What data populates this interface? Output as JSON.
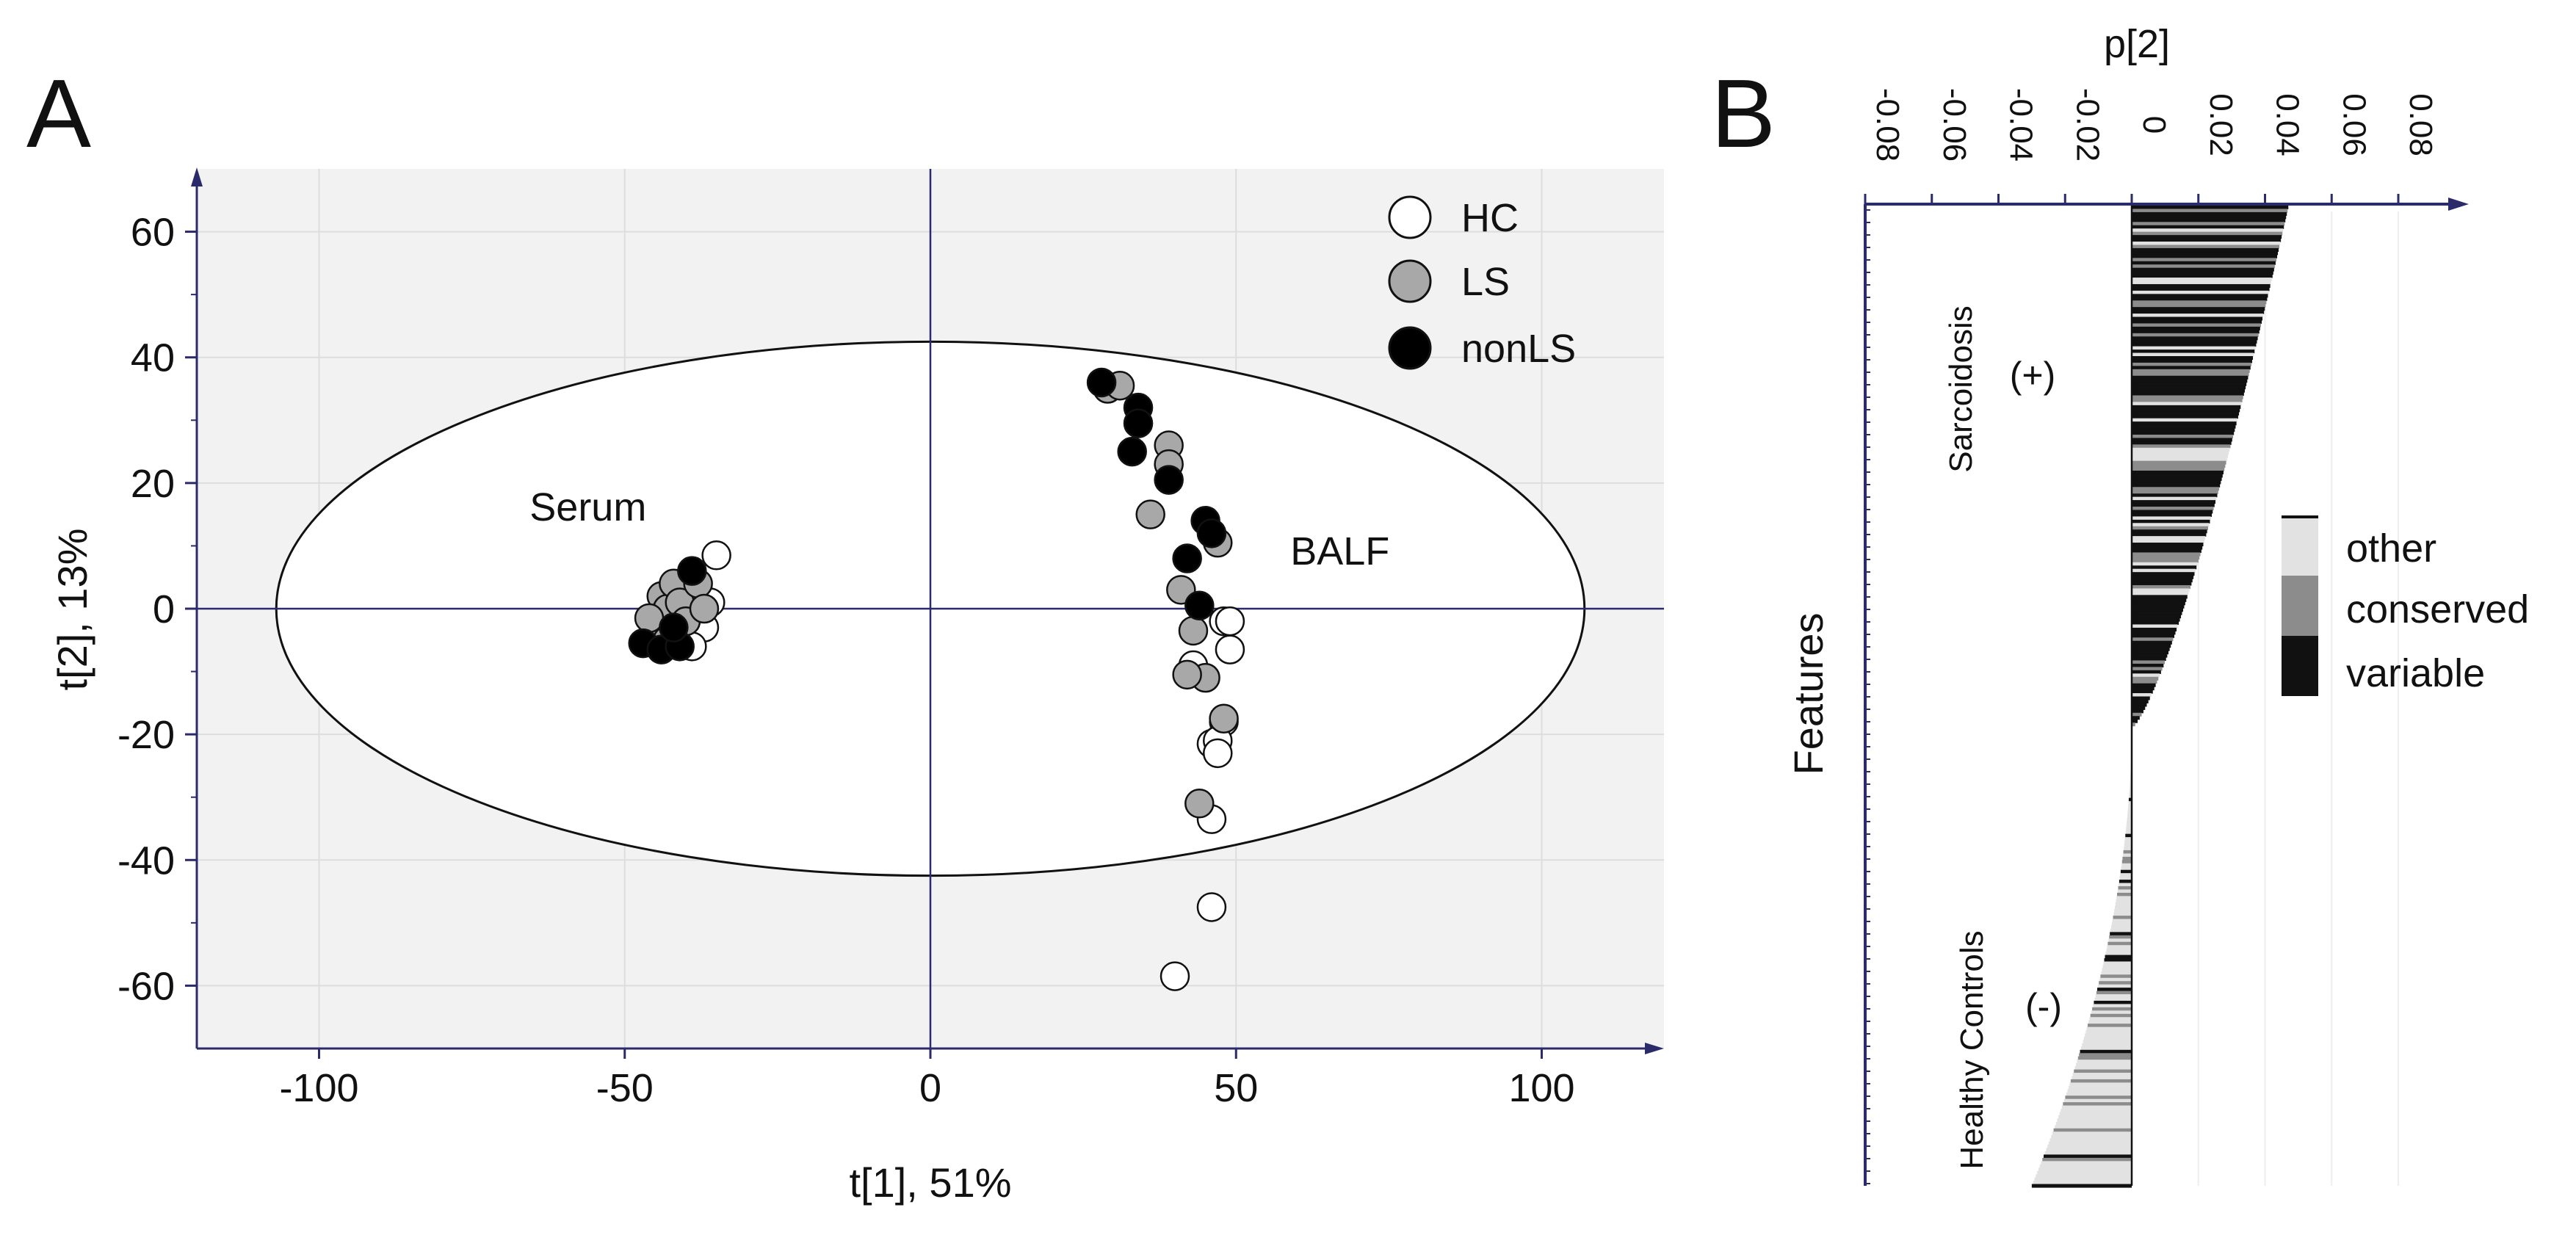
{
  "panels": {
    "a_label": "A",
    "b_label": "B"
  },
  "colors": {
    "plot_bg": "#f2f2f2",
    "hc": "#ffffff",
    "ls": "#a8a8a8",
    "nonls": "#000000",
    "other": "#e2e2e2",
    "conserved": "#8c8c8c",
    "variable": "#111111",
    "axis": "#2b2b6b"
  },
  "chart_data": [
    {
      "type": "scatter",
      "xlabel": "t[1], 51%",
      "ylabel": "t[2], 13%",
      "xlim": [
        -120,
        120
      ],
      "ylim": [
        -70,
        70
      ],
      "xticks": [
        -100,
        -50,
        0,
        50,
        100
      ],
      "yticks": [
        -60,
        -40,
        -20,
        0,
        20,
        40,
        60
      ],
      "grid": true,
      "legend_position": "top-right",
      "ellipse": {
        "center": [
          0,
          0
        ],
        "rx": 107,
        "ry": 42.5
      },
      "annotations": [
        {
          "text": "Serum",
          "x": -56,
          "y": 14
        },
        {
          "text": "BALF",
          "x": 67,
          "y": 7
        }
      ],
      "series": [
        {
          "name": "HC",
          "color": "#ffffff",
          "points": [
            [
              -35,
              8.5
            ],
            [
              -36,
              1
            ],
            [
              -37,
              -3
            ],
            [
              -39,
              -6
            ],
            [
              -42,
              -4
            ],
            [
              -44,
              -1
            ],
            [
              -40,
              1
            ],
            [
              43,
              -9
            ],
            [
              48,
              -2
            ],
            [
              49,
              -2
            ],
            [
              49,
              -6.5
            ],
            [
              48,
              -18
            ],
            [
              46,
              -21.5
            ],
            [
              47,
              -21
            ],
            [
              47,
              -23
            ],
            [
              46,
              -33.5
            ],
            [
              46,
              -47.5
            ],
            [
              40,
              -58.5
            ]
          ]
        },
        {
          "name": "LS",
          "color": "#a8a8a8",
          "points": [
            [
              -45,
              -4
            ],
            [
              -44,
              2
            ],
            [
              -43,
              0
            ],
            [
              -42,
              4
            ],
            [
              -41,
              1
            ],
            [
              -40,
              -2
            ],
            [
              -38,
              4
            ],
            [
              -37,
              0
            ],
            [
              -46,
              -1.5
            ],
            [
              -43,
              -5
            ],
            [
              29,
              35
            ],
            [
              31,
              35.5
            ],
            [
              39,
              26
            ],
            [
              39,
              23
            ],
            [
              36,
              15
            ],
            [
              47,
              10.5
            ],
            [
              41,
              3
            ],
            [
              43,
              -3.5
            ],
            [
              45,
              -11
            ],
            [
              42,
              -10.5
            ],
            [
              48,
              -17.5
            ],
            [
              44,
              -31
            ]
          ]
        },
        {
          "name": "nonLS",
          "color": "#000000",
          "points": [
            [
              -47,
              -5.5
            ],
            [
              -44,
              -6.5
            ],
            [
              -41,
              -6
            ],
            [
              -39,
              6
            ],
            [
              -42,
              -3
            ],
            [
              28,
              36
            ],
            [
              34,
              32
            ],
            [
              34,
              29.5
            ],
            [
              33,
              25
            ],
            [
              39,
              20.5
            ],
            [
              45,
              14
            ],
            [
              46,
              12
            ],
            [
              42,
              8
            ],
            [
              44,
              0.5
            ]
          ]
        }
      ]
    },
    {
      "type": "bar",
      "orientation": "horizontal",
      "title": "p[2]",
      "ylabel": "Features",
      "xlim": [
        -0.08,
        0.1
      ],
      "xticks": [
        -0.08,
        -0.06,
        -0.04,
        -0.02,
        0,
        0.02,
        0.04,
        0.06,
        0.08
      ],
      "xtick_labels": [
        "-0.08",
        "-0.06",
        "-0.04",
        "-0.02",
        "0",
        "0.02",
        "0.04",
        "0.06",
        "0.08"
      ],
      "group_labels": [
        {
          "label": "Sarcoidosis",
          "sign": "(+)"
        },
        {
          "label": "Healthy Controls",
          "sign": "(-)"
        }
      ],
      "legend": [
        {
          "name": "other",
          "color": "#e2e2e2"
        },
        {
          "name": "conserved",
          "color": "#8c8c8c"
        },
        {
          "name": "variable",
          "color": "#111111"
        }
      ],
      "legend_position": "right",
      "profile_max": 0.047,
      "profile_min": -0.03,
      "feature_count": 300
    }
  ]
}
